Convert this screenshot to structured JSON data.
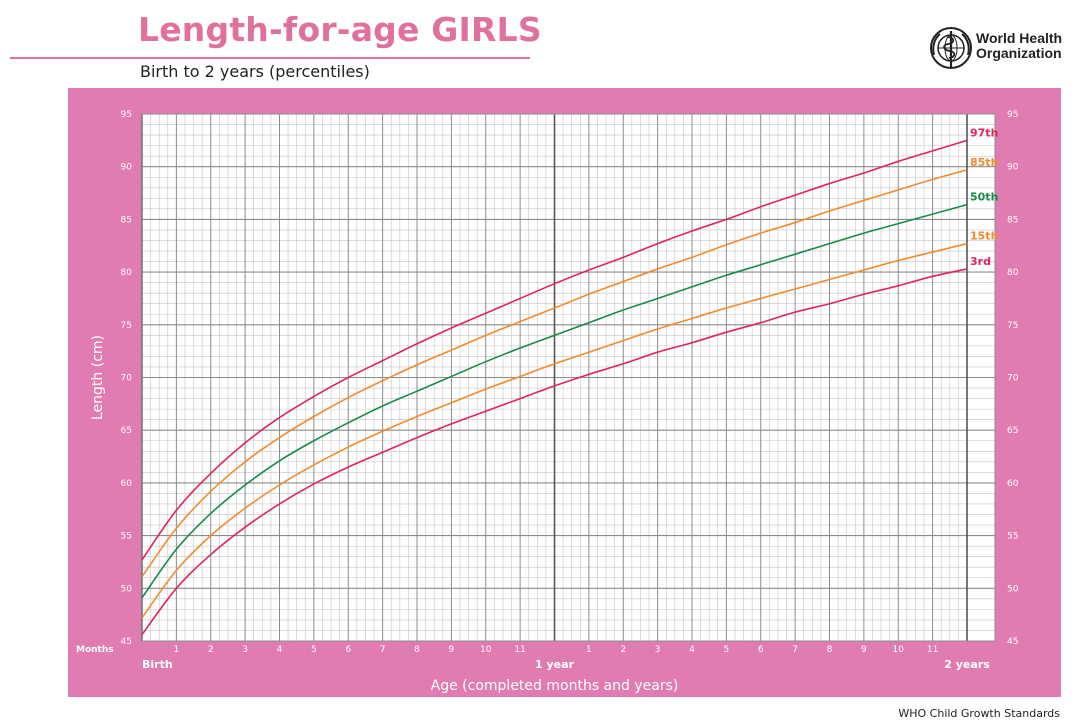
{
  "header": {
    "title": "Length-for-age GIRLS",
    "subtitle": "Birth to 2 years (percentiles)",
    "org_line1": "World Health",
    "org_line2": "Organization"
  },
  "footer": {
    "text": "WHO Child Growth Standards"
  },
  "colors": {
    "panel": "#e17cb2",
    "title": "#e0719f",
    "p3": "#e0245e",
    "p15": "#f28b2c",
    "p50": "#1a8a4a",
    "p85": "#f28b2c",
    "p97": "#e0245e"
  },
  "chart_data": {
    "type": "line",
    "xlabel": "Age (completed months and years)",
    "ylabel": "Length (cm)",
    "xlim": [
      0,
      24
    ],
    "ylim": [
      45,
      95
    ],
    "y_ticks": [
      45,
      50,
      55,
      60,
      65,
      70,
      75,
      80,
      85,
      90,
      95
    ],
    "x_tick_labels": [
      "Birth",
      "1",
      "2",
      "3",
      "4",
      "5",
      "6",
      "7",
      "8",
      "9",
      "10",
      "11",
      "1 year",
      "1",
      "2",
      "3",
      "4",
      "5",
      "6",
      "7",
      "8",
      "9",
      "10",
      "11",
      "2 years"
    ],
    "x_axis_unit_label": "Months",
    "grid": true,
    "x": [
      0,
      1,
      2,
      3,
      4,
      5,
      6,
      7,
      8,
      9,
      10,
      11,
      12,
      13,
      14,
      15,
      16,
      17,
      18,
      19,
      20,
      21,
      22,
      23,
      24
    ],
    "series": [
      {
        "name": "3rd",
        "color": "#e0245e",
        "values": [
          45.6,
          50.0,
          53.2,
          55.8,
          58.0,
          59.9,
          61.5,
          62.9,
          64.3,
          65.6,
          66.8,
          68.0,
          69.2,
          70.3,
          71.3,
          72.4,
          73.3,
          74.3,
          75.2,
          76.2,
          77.0,
          77.9,
          78.7,
          79.6,
          80.3
        ]
      },
      {
        "name": "15th",
        "color": "#f28b2c",
        "values": [
          47.2,
          51.7,
          55.0,
          57.6,
          59.8,
          61.7,
          63.4,
          64.9,
          66.3,
          67.6,
          68.9,
          70.1,
          71.3,
          72.4,
          73.5,
          74.6,
          75.6,
          76.6,
          77.5,
          78.4,
          79.3,
          80.2,
          81.1,
          81.9,
          82.7
        ]
      },
      {
        "name": "50th",
        "color": "#1a8a4a",
        "values": [
          49.1,
          53.7,
          57.1,
          59.8,
          62.1,
          64.0,
          65.7,
          67.3,
          68.7,
          70.1,
          71.5,
          72.8,
          74.0,
          75.2,
          76.4,
          77.5,
          78.6,
          79.7,
          80.7,
          81.7,
          82.7,
          83.7,
          84.6,
          85.5,
          86.4
        ]
      },
      {
        "name": "85th",
        "color": "#f28b2c",
        "values": [
          51.1,
          55.7,
          59.2,
          62.0,
          64.3,
          66.3,
          68.1,
          69.7,
          71.2,
          72.6,
          74.0,
          75.3,
          76.6,
          77.9,
          79.1,
          80.3,
          81.4,
          82.6,
          83.7,
          84.7,
          85.8,
          86.8,
          87.8,
          88.8,
          89.7
        ]
      },
      {
        "name": "97th",
        "color": "#e0245e",
        "values": [
          52.7,
          57.4,
          60.9,
          63.8,
          66.2,
          68.2,
          70.0,
          71.6,
          73.2,
          74.7,
          76.1,
          77.5,
          78.9,
          80.2,
          81.4,
          82.7,
          83.9,
          85.0,
          86.2,
          87.3,
          88.4,
          89.4,
          90.5,
          91.5,
          92.5
        ]
      }
    ]
  }
}
